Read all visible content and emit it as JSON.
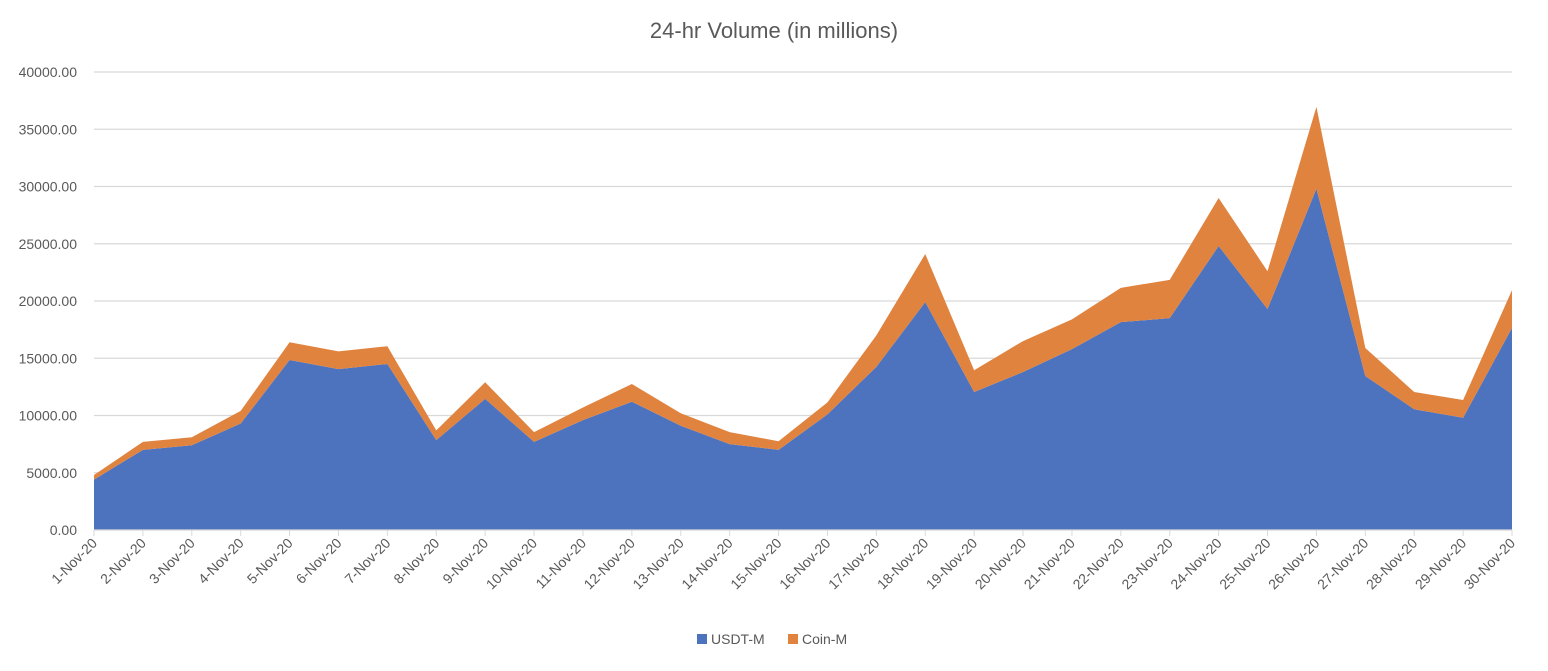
{
  "chart_data": {
    "type": "area",
    "stacked": true,
    "title": "24-hr Volume (in millions)",
    "xlabel": "",
    "ylabel": "",
    "ylim": [
      0,
      40000
    ],
    "yticks": [
      "0.00",
      "5000.00",
      "10000.00",
      "15000.00",
      "20000.00",
      "25000.00",
      "30000.00",
      "35000.00",
      "40000.00"
    ],
    "grid": true,
    "legend_position": "bottom",
    "categories": [
      "1-Nov-20",
      "2-Nov-20",
      "3-Nov-20",
      "4-Nov-20",
      "5-Nov-20",
      "6-Nov-20",
      "7-Nov-20",
      "8-Nov-20",
      "9-Nov-20",
      "10-Nov-20",
      "11-Nov-20",
      "12-Nov-20",
      "13-Nov-20",
      "14-Nov-20",
      "15-Nov-20",
      "16-Nov-20",
      "17-Nov-20",
      "18-Nov-20",
      "19-Nov-20",
      "20-Nov-20",
      "21-Nov-20",
      "22-Nov-20",
      "23-Nov-20",
      "24-Nov-20",
      "25-Nov-20",
      "26-Nov-20",
      "27-Nov-20",
      "28-Nov-20",
      "29-Nov-20",
      "30-Nov-20"
    ],
    "series": [
      {
        "name": "USDT-M",
        "color": "#4E73BE",
        "values": [
          4400,
          7000,
          7400,
          9300,
          14850,
          14050,
          14500,
          7850,
          11450,
          7700,
          9600,
          11200,
          9100,
          7500,
          7000,
          10100,
          14250,
          19900,
          12050,
          13800,
          15800,
          18150,
          18500,
          24800,
          19300,
          29800,
          13450,
          10550,
          9800,
          17650
        ]
      },
      {
        "name": "Coin-M",
        "color": "#E0833F",
        "values": [
          400,
          700,
          700,
          1100,
          1550,
          1550,
          1550,
          850,
          1450,
          850,
          1100,
          1550,
          1100,
          1050,
          750,
          1050,
          2750,
          4200,
          1900,
          2700,
          2600,
          3000,
          3350,
          4200,
          3300,
          7150,
          2450,
          1500,
          1550,
          3300
        ]
      }
    ]
  }
}
